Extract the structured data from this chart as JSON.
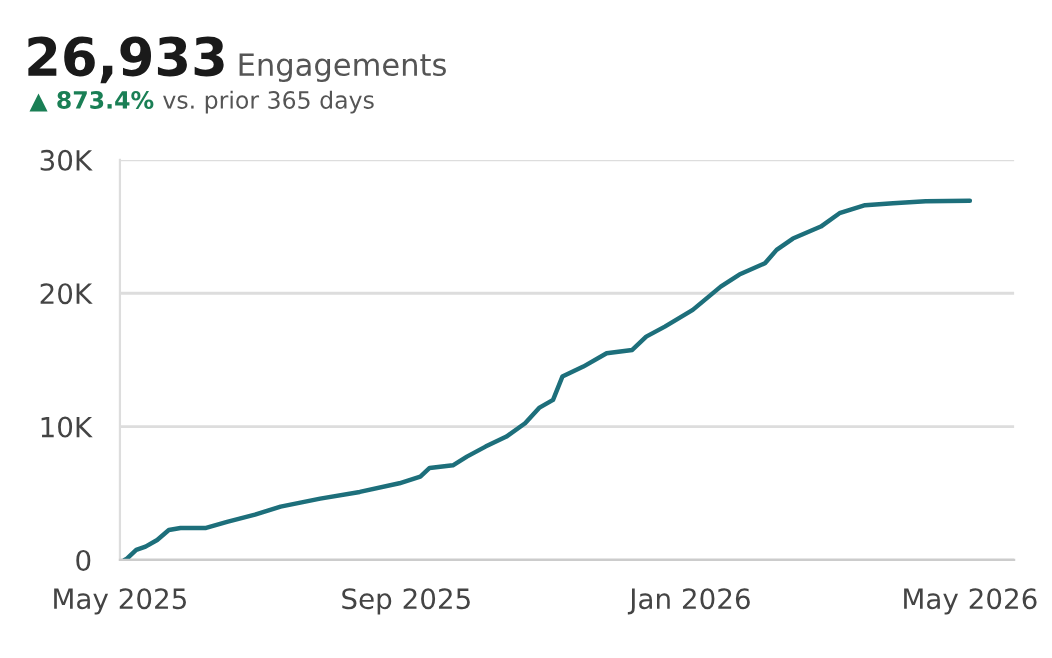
{
  "chart_data": {
    "type": "line",
    "title": "26,933",
    "subtitle": "Engagements",
    "annotations": [
      "▲ 873.4%",
      "vs. prior 365 days"
    ],
    "x": [
      "2025-05-03",
      "2025-05-04",
      "2025-05-08",
      "2025-05-12",
      "2025-05-17",
      "2025-05-22",
      "2025-05-27",
      "2025-06-07",
      "2025-06-16",
      "2025-06-28",
      "2025-07-09",
      "2025-07-26",
      "2025-08-12",
      "2025-08-29",
      "2025-09-07",
      "2025-09-11",
      "2025-09-21",
      "2025-09-27",
      "2025-10-05",
      "2025-10-14",
      "2025-10-22",
      "2025-10-28",
      "2025-11-03",
      "2025-11-07",
      "2025-11-16",
      "2025-11-26",
      "2025-12-07",
      "2025-12-13",
      "2025-12-21",
      "2026-01-02",
      "2026-01-14",
      "2026-01-22",
      "2026-02-02",
      "2026-02-07",
      "2026-02-14",
      "2026-02-26",
      "2026-03-06",
      "2026-03-17",
      "2026-03-29",
      "2026-04-12",
      "2026-05-01"
    ],
    "series": [
      {
        "color": "#1d6f7b",
        "values": [
          0,
          100,
          750,
          1000,
          1500,
          2250,
          2400,
          2400,
          2850,
          3400,
          4000,
          4600,
          5100,
          5750,
          6250,
          6900,
          7100,
          7750,
          8500,
          9250,
          10250,
          11400,
          12000,
          13750,
          14500,
          15500,
          15750,
          16750,
          17500,
          18750,
          20500,
          21400,
          22250,
          23250,
          24100,
          25000,
          26000,
          26600,
          26750,
          26900,
          26933
        ]
      }
    ],
    "xlim": [
      "2025-05-01",
      "2026-05-20"
    ],
    "xticks": [
      {
        "value": "2025-05-01",
        "label": "May 2025"
      },
      {
        "value": "2025-09-01",
        "label": "Sep 2025"
      },
      {
        "value": "2026-01-01",
        "label": "Jan 2026"
      },
      {
        "value": "2026-05-01",
        "label": "May 2026"
      }
    ],
    "ylim": [
      0,
      30000
    ],
    "yticks": [
      0,
      {
        "value": 10000,
        "label": "10K"
      },
      {
        "value": 20000,
        "label": "20K"
      },
      {
        "value": 30000,
        "label": "30K"
      }
    ],
    "grid": "y",
    "marker": "none",
    "line_style": "solid"
  }
}
